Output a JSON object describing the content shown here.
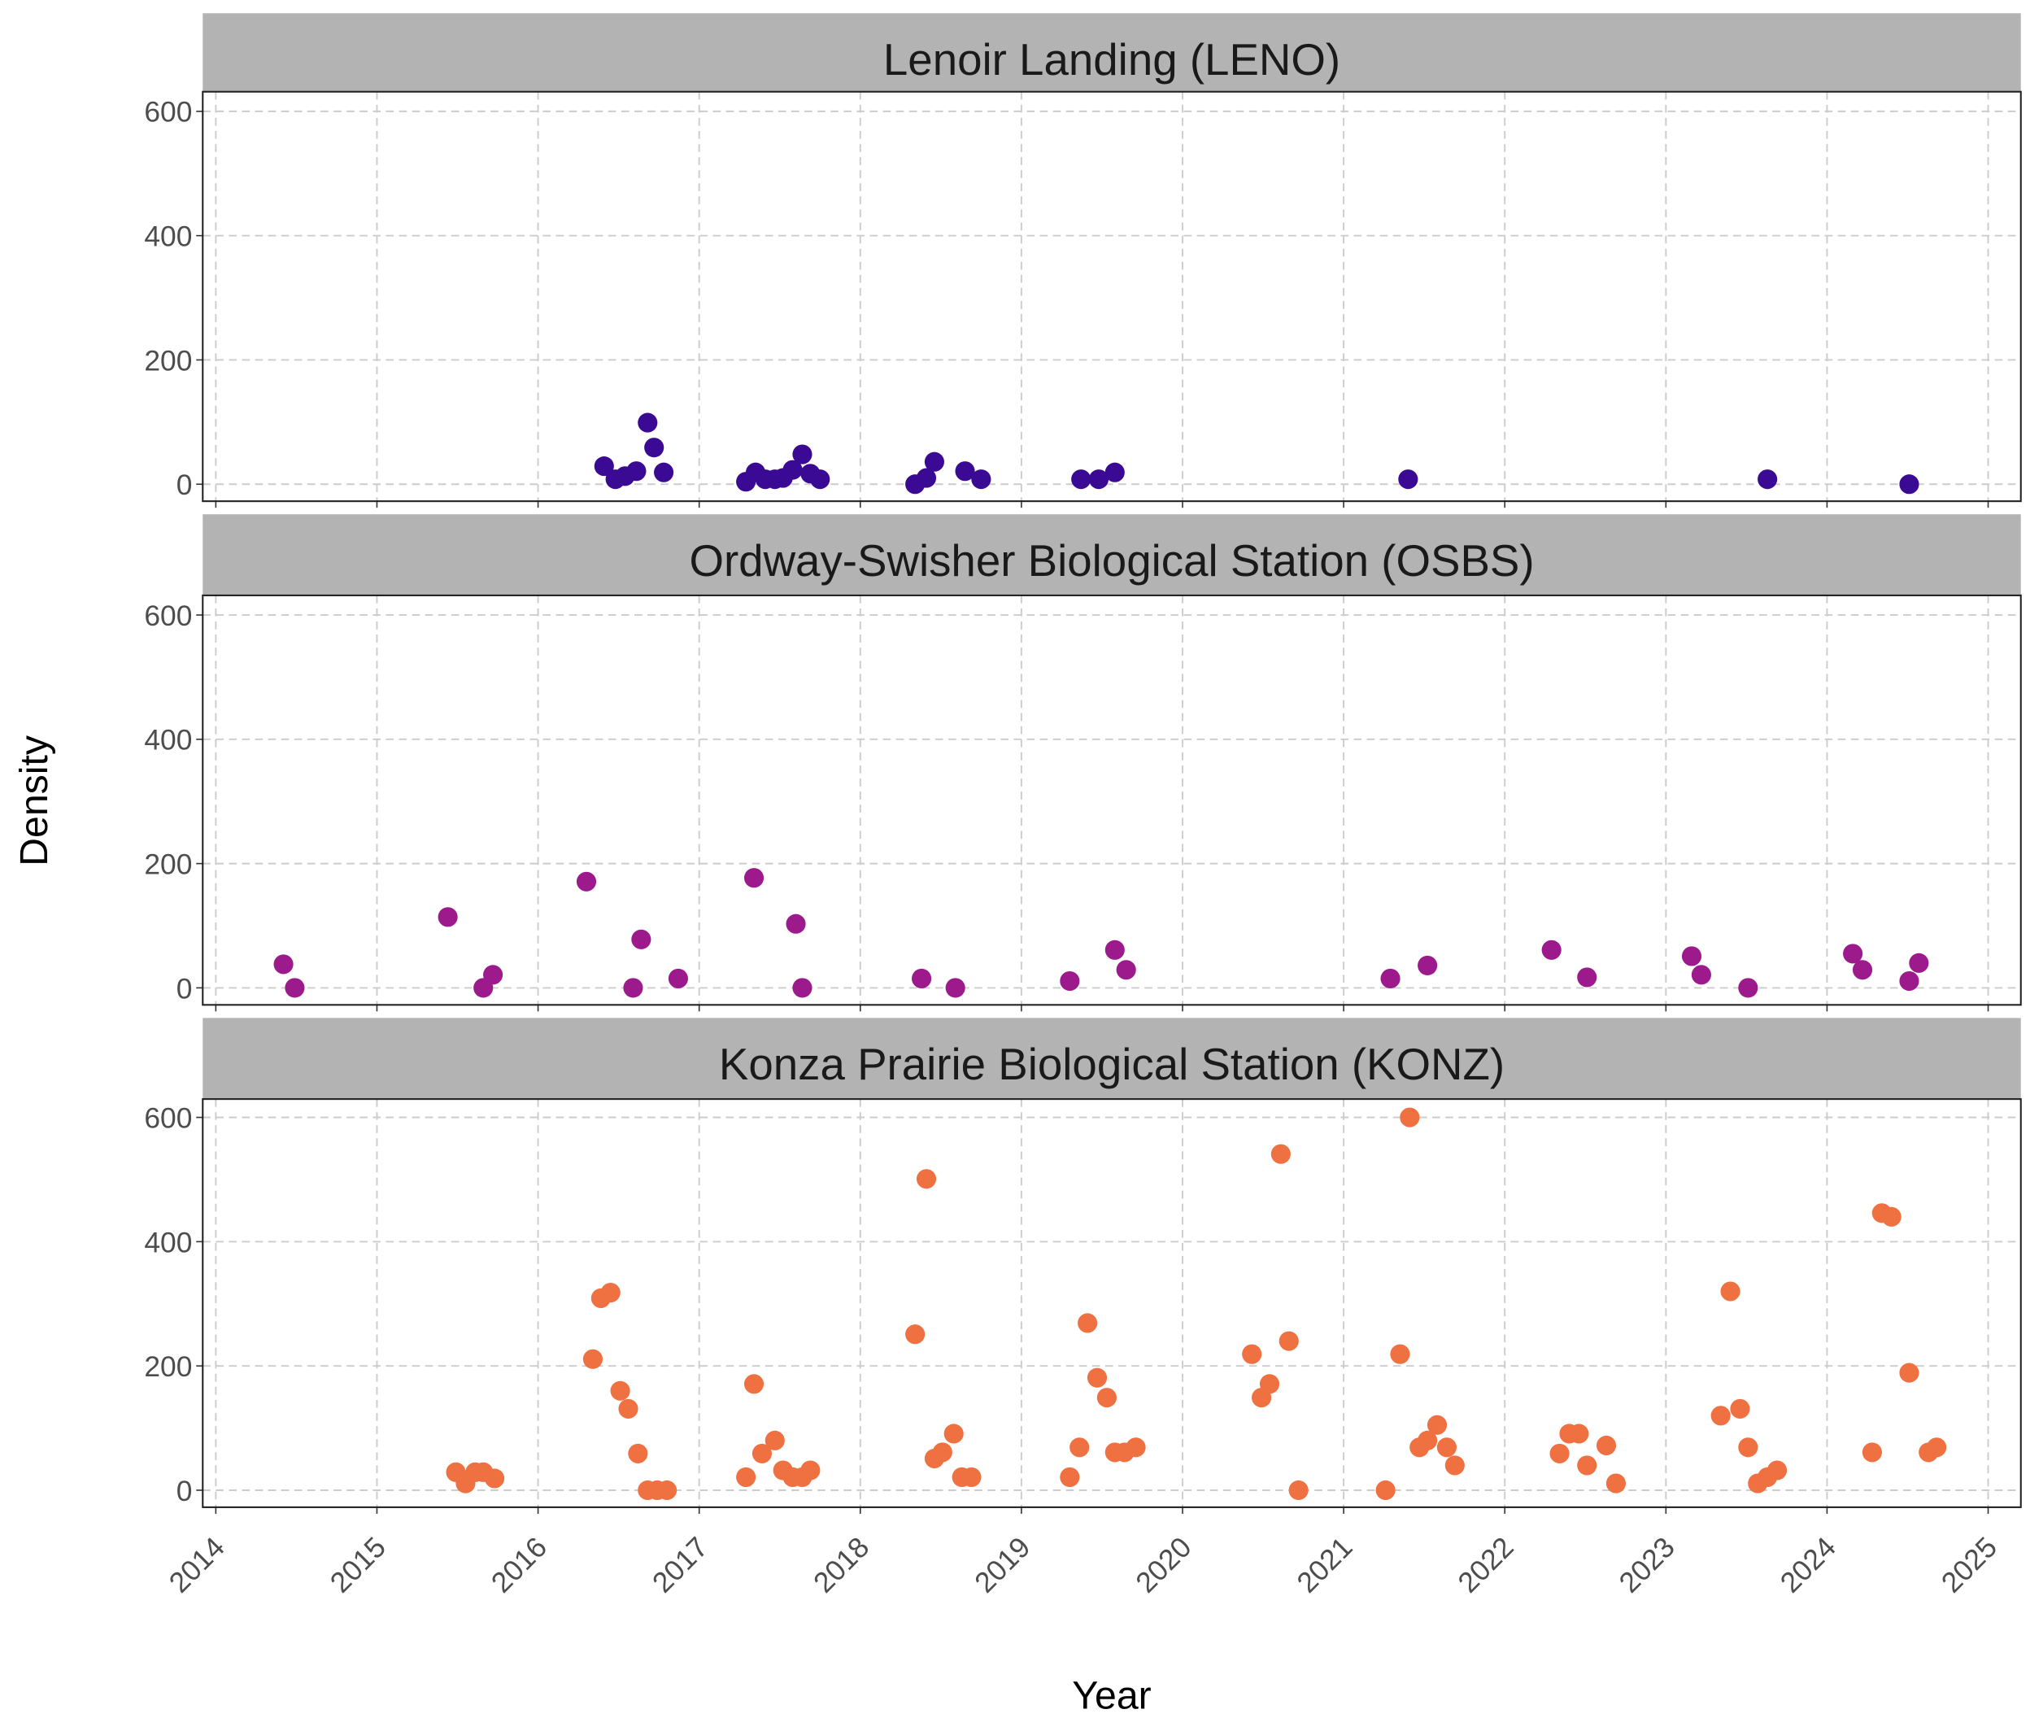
{
  "chart_data": {
    "type": "scatter",
    "xlabel": "Year",
    "ylabel": "Density",
    "xlim": [
      2014,
      2025
    ],
    "ylim": [
      0,
      600
    ],
    "x_ticks": [
      "2014",
      "2015",
      "2016",
      "2017",
      "2018",
      "2019",
      "2020",
      "2021",
      "2022",
      "2023",
      "2024",
      "2025"
    ],
    "y_ticks": [
      "0",
      "200",
      "400",
      "600"
    ],
    "grid": true,
    "panels": [
      {
        "title": "Lenoir Landing (LENO)",
        "color": "#3a0a94",
        "points": [
          [
            2016.41,
            29
          ],
          [
            2016.48,
            8
          ],
          [
            2016.54,
            13
          ],
          [
            2016.61,
            21
          ],
          [
            2016.68,
            99
          ],
          [
            2016.72,
            59
          ],
          [
            2016.78,
            19
          ],
          [
            2017.29,
            4
          ],
          [
            2017.35,
            19
          ],
          [
            2017.41,
            8
          ],
          [
            2017.47,
            8
          ],
          [
            2017.52,
            10
          ],
          [
            2017.58,
            23
          ],
          [
            2017.64,
            48
          ],
          [
            2017.69,
            17
          ],
          [
            2017.75,
            8
          ],
          [
            2018.34,
            0
          ],
          [
            2018.41,
            10
          ],
          [
            2018.46,
            36
          ],
          [
            2018.65,
            21
          ],
          [
            2018.75,
            8
          ],
          [
            2019.37,
            8
          ],
          [
            2019.48,
            8
          ],
          [
            2019.58,
            19
          ],
          [
            2021.4,
            8
          ],
          [
            2023.63,
            8
          ],
          [
            2024.51,
            0
          ]
        ]
      },
      {
        "title": "Ordway-Swisher Biological Station (OSBS)",
        "color": "#9c1a8c",
        "points": [
          [
            2014.42,
            38
          ],
          [
            2014.49,
            0
          ],
          [
            2015.44,
            114
          ],
          [
            2015.66,
            0
          ],
          [
            2015.72,
            21
          ],
          [
            2016.3,
            171
          ],
          [
            2016.59,
            0
          ],
          [
            2016.64,
            78
          ],
          [
            2016.87,
            15
          ],
          [
            2017.34,
            177
          ],
          [
            2017.6,
            103
          ],
          [
            2017.64,
            0
          ],
          [
            2018.38,
            15
          ],
          [
            2018.59,
            0
          ],
          [
            2019.3,
            11
          ],
          [
            2019.58,
            61
          ],
          [
            2019.65,
            29
          ],
          [
            2021.29,
            15
          ],
          [
            2021.52,
            36
          ],
          [
            2022.29,
            61
          ],
          [
            2022.51,
            17
          ],
          [
            2023.16,
            51
          ],
          [
            2023.22,
            21
          ],
          [
            2023.51,
            0
          ],
          [
            2024.16,
            55
          ],
          [
            2024.22,
            29
          ],
          [
            2024.51,
            11
          ],
          [
            2024.57,
            40
          ]
        ]
      },
      {
        "title": "Konza Prairie Biological Station (KONZ)",
        "color": "#ef7040",
        "points": [
          [
            2015.49,
            29
          ],
          [
            2015.55,
            11
          ],
          [
            2015.61,
            29
          ],
          [
            2015.66,
            29
          ],
          [
            2015.73,
            19
          ],
          [
            2016.34,
            211
          ],
          [
            2016.39,
            309
          ],
          [
            2016.45,
            318
          ],
          [
            2016.51,
            160
          ],
          [
            2016.56,
            131
          ],
          [
            2016.62,
            59
          ],
          [
            2016.68,
            0
          ],
          [
            2016.74,
            0
          ],
          [
            2016.8,
            0
          ],
          [
            2017.29,
            21
          ],
          [
            2017.34,
            171
          ],
          [
            2017.39,
            59
          ],
          [
            2017.47,
            80
          ],
          [
            2017.52,
            32
          ],
          [
            2017.58,
            21
          ],
          [
            2017.64,
            21
          ],
          [
            2017.69,
            32
          ],
          [
            2018.34,
            251
          ],
          [
            2018.41,
            501
          ],
          [
            2018.46,
            51
          ],
          [
            2018.51,
            61
          ],
          [
            2018.58,
            91
          ],
          [
            2018.63,
            21
          ],
          [
            2018.69,
            21
          ],
          [
            2019.3,
            21
          ],
          [
            2019.36,
            69
          ],
          [
            2019.41,
            269
          ],
          [
            2019.47,
            181
          ],
          [
            2019.53,
            149
          ],
          [
            2019.58,
            61
          ],
          [
            2019.64,
            61
          ],
          [
            2019.71,
            69
          ],
          [
            2020.43,
            219
          ],
          [
            2020.49,
            149
          ],
          [
            2020.54,
            171
          ],
          [
            2020.61,
            541
          ],
          [
            2020.66,
            240
          ],
          [
            2020.72,
            0
          ],
          [
            2021.26,
            0
          ],
          [
            2021.35,
            219
          ],
          [
            2021.41,
            600
          ],
          [
            2021.47,
            69
          ],
          [
            2021.52,
            80
          ],
          [
            2021.58,
            105
          ],
          [
            2021.64,
            69
          ],
          [
            2021.69,
            40
          ],
          [
            2022.34,
            59
          ],
          [
            2022.4,
            91
          ],
          [
            2022.46,
            91
          ],
          [
            2022.51,
            40
          ],
          [
            2022.63,
            72
          ],
          [
            2022.69,
            11
          ],
          [
            2023.34,
            120
          ],
          [
            2023.4,
            320
          ],
          [
            2023.46,
            131
          ],
          [
            2023.51,
            69
          ],
          [
            2023.57,
            11
          ],
          [
            2023.63,
            21
          ],
          [
            2023.69,
            32
          ],
          [
            2024.28,
            61
          ],
          [
            2024.34,
            446
          ],
          [
            2024.4,
            440
          ],
          [
            2024.51,
            189
          ],
          [
            2024.63,
            61
          ],
          [
            2024.68,
            69
          ]
        ]
      }
    ]
  }
}
